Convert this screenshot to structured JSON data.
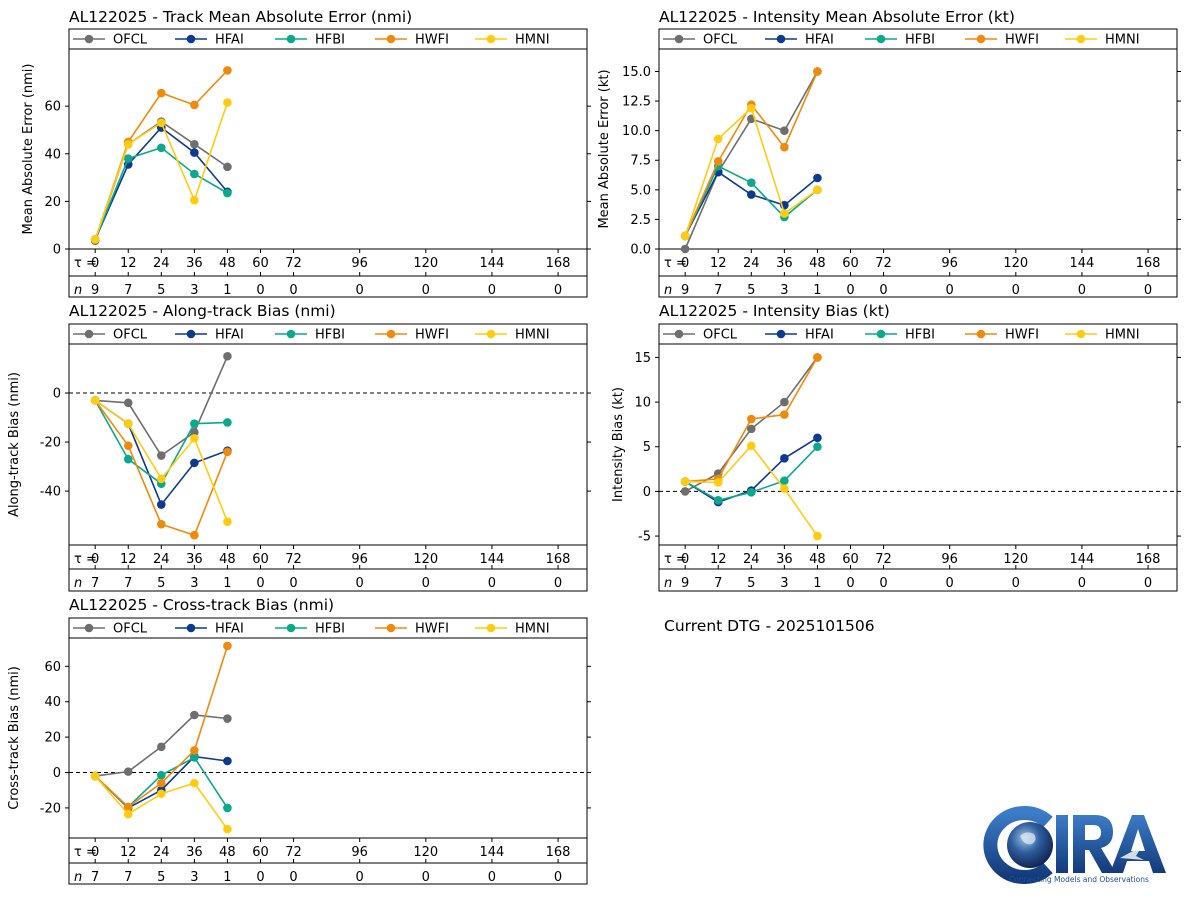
{
  "figure": {
    "dtg_label": "Current DTG - 2025101506",
    "logo": {
      "text": "CIRA",
      "tagline": "Connecting Models and Observations"
    }
  },
  "chart_data": [
    {
      "id": "track-mae",
      "type": "line",
      "title": "AL122025 - Track Mean Absolute Error (nmi)",
      "ylabel": "Mean Absolute Error (nmi)",
      "ylim": [
        0,
        84
      ],
      "yticks": [
        0,
        20,
        40,
        60
      ],
      "zero_line": false,
      "tau": [
        0,
        12,
        24,
        36,
        48,
        60,
        72,
        96,
        120,
        144,
        168
      ],
      "n": [
        9,
        7,
        5,
        3,
        1,
        0,
        0,
        0,
        0,
        0,
        0
      ],
      "tau_label": "τ =",
      "n_label": "n",
      "series": [
        {
          "name": "OFCL",
          "color": "#6e6e6e",
          "x": [
            0,
            12,
            24,
            36,
            48
          ],
          "values": [
            3.5,
            44,
            53.5,
            44,
            34.5
          ]
        },
        {
          "name": "HFAI",
          "color": "#0b3a8f",
          "x": [
            0,
            12,
            24,
            36,
            48
          ],
          "values": [
            4,
            35.5,
            51,
            40.5,
            24
          ]
        },
        {
          "name": "HFBI",
          "color": "#0aa98c",
          "x": [
            0,
            12,
            24,
            36,
            48
          ],
          "values": [
            4,
            38,
            42.5,
            31.5,
            23.5
          ]
        },
        {
          "name": "HWFI",
          "color": "#f08a0c",
          "x": [
            0,
            12,
            24,
            36,
            48
          ],
          "values": [
            4,
            45,
            65.5,
            60.5,
            75
          ]
        },
        {
          "name": "HMNI",
          "color": "#ffcc11",
          "x": [
            0,
            12,
            24,
            36,
            48
          ],
          "values": [
            4,
            44,
            53,
            20.5,
            61.5
          ]
        }
      ]
    },
    {
      "id": "intensity-mae",
      "type": "line",
      "title": "AL122025 - Intensity Mean Absolute Error (kt)",
      "ylabel": "Mean Absolute Error (kt)",
      "ylim": [
        0,
        16.9
      ],
      "yticks": [
        0.0,
        2.5,
        5.0,
        7.5,
        10.0,
        12.5,
        15.0
      ],
      "ytick_labels": [
        "0.0",
        "2.5",
        "5.0",
        "7.5",
        "10.0",
        "12.5",
        "15.0"
      ],
      "zero_line": false,
      "tau": [
        0,
        12,
        24,
        36,
        48,
        60,
        72,
        96,
        120,
        144,
        168
      ],
      "n": [
        9,
        7,
        5,
        3,
        1,
        0,
        0,
        0,
        0,
        0,
        0
      ],
      "tau_label": "τ =",
      "n_label": "n",
      "series": [
        {
          "name": "OFCL",
          "color": "#6e6e6e",
          "x": [
            0,
            12,
            24,
            36,
            48
          ],
          "values": [
            0,
            6.5,
            11,
            10,
            15
          ]
        },
        {
          "name": "HFAI",
          "color": "#0b3a8f",
          "x": [
            0,
            12,
            24,
            36,
            48
          ],
          "values": [
            1.1,
            6.5,
            4.6,
            3.7,
            6
          ]
        },
        {
          "name": "HFBI",
          "color": "#0aa98c",
          "x": [
            0,
            12,
            24,
            36,
            48
          ],
          "values": [
            1.1,
            7,
            5.6,
            2.7,
            5
          ]
        },
        {
          "name": "HWFI",
          "color": "#f08a0c",
          "x": [
            0,
            12,
            24,
            36,
            48
          ],
          "values": [
            1.1,
            7.4,
            12.2,
            8.6,
            15
          ]
        },
        {
          "name": "HMNI",
          "color": "#ffcc11",
          "x": [
            0,
            12,
            24,
            36,
            48
          ],
          "values": [
            1.1,
            9.3,
            11.9,
            3,
            5
          ]
        }
      ]
    },
    {
      "id": "along-track-bias",
      "type": "line",
      "title": "AL122025 - Along-track Bias (nmi)",
      "ylabel": "Along-track Bias (nmi)",
      "ylim": [
        -62,
        20
      ],
      "yticks": [
        -40,
        -20,
        0
      ],
      "zero_line": true,
      "tau": [
        0,
        12,
        24,
        36,
        48,
        60,
        72,
        96,
        120,
        144,
        168
      ],
      "n": [
        7,
        7,
        5,
        3,
        1,
        0,
        0,
        0,
        0,
        0,
        0
      ],
      "tau_label": "τ =",
      "n_label": "n",
      "series": [
        {
          "name": "OFCL",
          "color": "#6e6e6e",
          "x": [
            0,
            12,
            24,
            36,
            48
          ],
          "values": [
            -3,
            -4,
            -25.5,
            -16,
            15
          ]
        },
        {
          "name": "HFAI",
          "color": "#0b3a8f",
          "x": [
            0,
            12,
            24,
            36,
            48
          ],
          "values": [
            -3,
            -12.5,
            -45.5,
            -28.5,
            -23.5
          ]
        },
        {
          "name": "HFBI",
          "color": "#0aa98c",
          "x": [
            0,
            12,
            24,
            36,
            48
          ],
          "values": [
            -3,
            -27,
            -37,
            -12.5,
            -12
          ]
        },
        {
          "name": "HWFI",
          "color": "#f08a0c",
          "x": [
            0,
            12,
            24,
            36,
            48
          ],
          "values": [
            -3,
            -21.5,
            -53.5,
            -58,
            -24
          ]
        },
        {
          "name": "HMNI",
          "color": "#ffcc11",
          "x": [
            0,
            12,
            24,
            36,
            48
          ],
          "values": [
            -3,
            -12.5,
            -35,
            -18.5,
            -52.5
          ]
        }
      ]
    },
    {
      "id": "intensity-bias",
      "type": "line",
      "title": "AL122025 - Intensity Bias (kt)",
      "ylabel": "Intensity Bias (kt)",
      "ylim": [
        -6,
        16.5
      ],
      "yticks": [
        -5,
        0,
        5,
        10,
        15
      ],
      "zero_line": true,
      "tau": [
        0,
        12,
        24,
        36,
        48,
        60,
        72,
        96,
        120,
        144,
        168
      ],
      "n": [
        9,
        7,
        5,
        3,
        1,
        0,
        0,
        0,
        0,
        0,
        0
      ],
      "tau_label": "τ =",
      "n_label": "n",
      "series": [
        {
          "name": "OFCL",
          "color": "#6e6e6e",
          "x": [
            0,
            12,
            24,
            36,
            48
          ],
          "values": [
            0,
            2,
            7,
            10,
            15
          ]
        },
        {
          "name": "HFAI",
          "color": "#0b3a8f",
          "x": [
            0,
            12,
            24,
            36,
            48
          ],
          "values": [
            1.1,
            -1.2,
            0.1,
            3.7,
            6
          ]
        },
        {
          "name": "HFBI",
          "color": "#0aa98c",
          "x": [
            0,
            12,
            24,
            36,
            48
          ],
          "values": [
            1.1,
            -1,
            -0.1,
            1.2,
            5
          ]
        },
        {
          "name": "HWFI",
          "color": "#f08a0c",
          "x": [
            0,
            12,
            24,
            36,
            48
          ],
          "values": [
            1.1,
            1.4,
            8.1,
            8.6,
            15
          ]
        },
        {
          "name": "HMNI",
          "color": "#ffcc11",
          "x": [
            0,
            12,
            24,
            36,
            48
          ],
          "values": [
            1.1,
            1,
            5.1,
            0.3,
            -5
          ]
        }
      ]
    },
    {
      "id": "cross-track-bias",
      "type": "line",
      "title": "AL122025 - Cross-track Bias (nmi)",
      "ylabel": "Cross-track Bias (nmi)",
      "ylim": [
        -37,
        76
      ],
      "yticks": [
        -20,
        0,
        20,
        40,
        60
      ],
      "zero_line": true,
      "tau": [
        0,
        12,
        24,
        36,
        48,
        60,
        72,
        96,
        120,
        144,
        168
      ],
      "n": [
        7,
        7,
        5,
        3,
        1,
        0,
        0,
        0,
        0,
        0,
        0
      ],
      "tau_label": "τ =",
      "n_label": "n",
      "series": [
        {
          "name": "OFCL",
          "color": "#6e6e6e",
          "x": [
            0,
            12,
            24,
            36,
            48
          ],
          "values": [
            -2,
            0.5,
            14.5,
            32.5,
            30.5
          ]
        },
        {
          "name": "HFAI",
          "color": "#0b3a8f",
          "x": [
            0,
            12,
            24,
            36,
            48
          ],
          "values": [
            -2,
            -20,
            -10,
            9,
            6.5
          ]
        },
        {
          "name": "HFBI",
          "color": "#0aa98c",
          "x": [
            0,
            12,
            24,
            36,
            48
          ],
          "values": [
            -2,
            -19.5,
            -1.5,
            8.5,
            -20
          ]
        },
        {
          "name": "HWFI",
          "color": "#f08a0c",
          "x": [
            0,
            12,
            24,
            36,
            48
          ],
          "values": [
            -2,
            -19.5,
            -6,
            12.5,
            71.5
          ]
        },
        {
          "name": "HMNI",
          "color": "#ffcc11",
          "x": [
            0,
            12,
            24,
            36,
            48
          ],
          "values": [
            -2,
            -23.5,
            -12,
            -6,
            -32
          ]
        }
      ]
    }
  ]
}
